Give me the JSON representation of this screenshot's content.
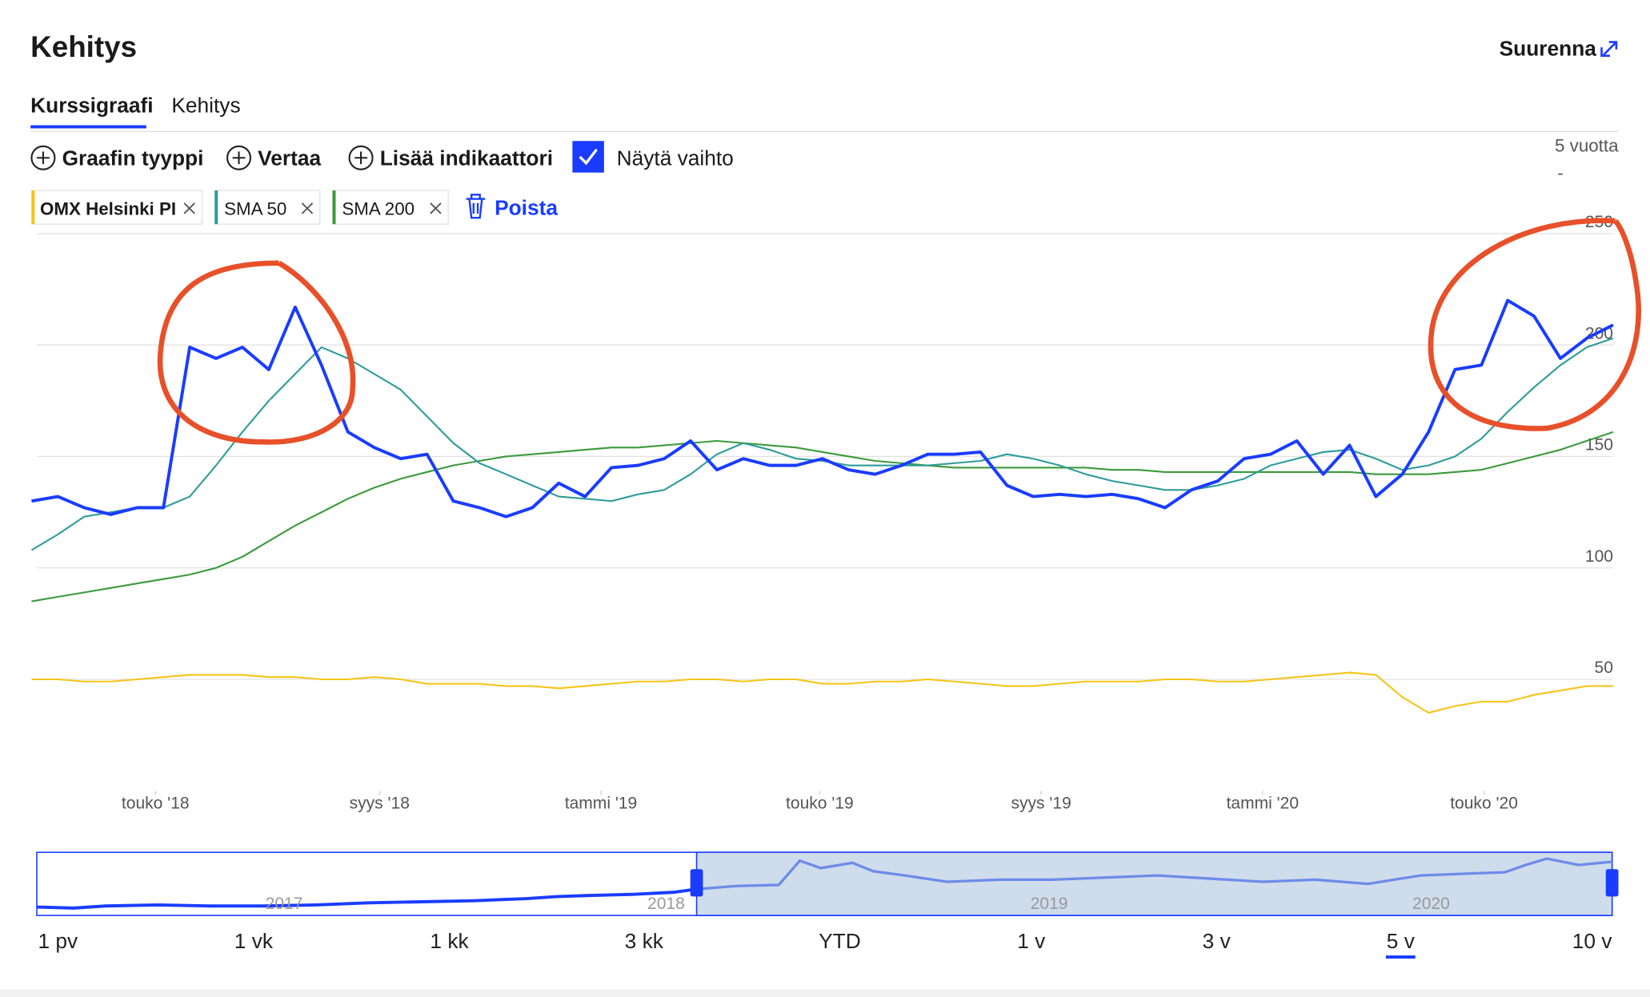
{
  "header": {
    "title": "Kehitys",
    "expand": "Suurenna"
  },
  "tabs": [
    "Kurssigraafi",
    "Kehitys"
  ],
  "toolbar": {
    "chart_type": "Graafin tyyppi",
    "compare": "Vertaa",
    "add_indicator": "Lisää indikaattori",
    "show_volume": "Näytä vaihto",
    "period_label": "5 vuotta",
    "period_value": "-"
  },
  "chips": [
    {
      "name": "OMX Helsinki PI",
      "color": "#f5c518"
    },
    {
      "name": "SMA 50",
      "color": "#2e9c9a"
    },
    {
      "name": "SMA 200",
      "color": "#3c9a3c"
    }
  ],
  "remove": "Poista",
  "chart_data": {
    "type": "line",
    "series": [
      {
        "name": "OMX Helsinki PI",
        "color": "#f5c518",
        "values": [
          50,
          50,
          49,
          49,
          50,
          51,
          52,
          52,
          52,
          51,
          51,
          50,
          50,
          51,
          50,
          48,
          48,
          48,
          47,
          47,
          46,
          47,
          48,
          49,
          49,
          50,
          50,
          49,
          50,
          50,
          48,
          48,
          49,
          49,
          50,
          49,
          48,
          47,
          47,
          48,
          49,
          49,
          49,
          50,
          50,
          49,
          49,
          50,
          51,
          52,
          53,
          52,
          42,
          35,
          38,
          40,
          40,
          43,
          45,
          47,
          47
        ]
      },
      {
        "name": "SMA 200",
        "color": "#3c9a3c",
        "values": [
          85,
          87,
          89,
          91,
          93,
          95,
          97,
          100,
          105,
          112,
          119,
          125,
          131,
          136,
          140,
          143,
          146,
          148,
          150,
          151,
          152,
          153,
          154,
          154,
          155,
          156,
          157,
          156,
          155,
          154,
          152,
          150,
          148,
          147,
          146,
          145,
          145,
          145,
          145,
          145,
          145,
          144,
          144,
          143,
          143,
          143,
          143,
          143,
          143,
          143,
          143,
          142,
          142,
          142,
          143,
          144,
          147,
          150,
          153,
          157,
          161
        ]
      },
      {
        "name": "SMA 50",
        "color": "#2e9c9a",
        "values": [
          108,
          115,
          123,
          125,
          127,
          127,
          132,
          146,
          161,
          175,
          187,
          199,
          194,
          187,
          180,
          168,
          156,
          147,
          142,
          137,
          132,
          131,
          130,
          133,
          135,
          142,
          151,
          156,
          153,
          149,
          148,
          146,
          146,
          146,
          146,
          147,
          148,
          151,
          149,
          146,
          142,
          139,
          137,
          135,
          135,
          137,
          140,
          146,
          149,
          152,
          153,
          149,
          144,
          146,
          150,
          158,
          170,
          181,
          191,
          199,
          203
        ]
      },
      {
        "color": "#1a3cff",
        "values": [
          130,
          132,
          127,
          124,
          127,
          127,
          199,
          194,
          199,
          189,
          217,
          191,
          161,
          154,
          149,
          151,
          130,
          127,
          123,
          127,
          138,
          132,
          145,
          146,
          149,
          157,
          144,
          149,
          146,
          146,
          149,
          144,
          142,
          146,
          151,
          151,
          152,
          137,
          132,
          133,
          132,
          133,
          131,
          127,
          135,
          139,
          149,
          151,
          157,
          142,
          155,
          132,
          142,
          161,
          189,
          191,
          220,
          213,
          194,
          203,
          209
        ]
      }
    ],
    "xlim": [
      0,
      60
    ],
    "xticks": [
      {
        "value": 4.7,
        "label": "touko '18"
      },
      {
        "value": 13.2,
        "label": "syys '18"
      },
      {
        "value": 21.6,
        "label": "tammi '19"
      },
      {
        "value": 29.9,
        "label": "touko '19"
      },
      {
        "value": 38.3,
        "label": "syys '19"
      },
      {
        "value": 46.7,
        "label": "tammi '20"
      },
      {
        "value": 55.1,
        "label": "touko '20"
      }
    ],
    "ylim": [
      0,
      250
    ],
    "yticks": [
      50,
      100,
      150,
      200,
      250
    ],
    "grid": true
  },
  "navigator": {
    "years": [
      "2017",
      "2018",
      "2019",
      "2020"
    ]
  },
  "ranges": [
    "1 pv",
    "1 vk",
    "1 kk",
    "3 kk",
    "YTD",
    "1 v",
    "3 v",
    "5 v",
    "10 v"
  ],
  "selected_range": 7
}
